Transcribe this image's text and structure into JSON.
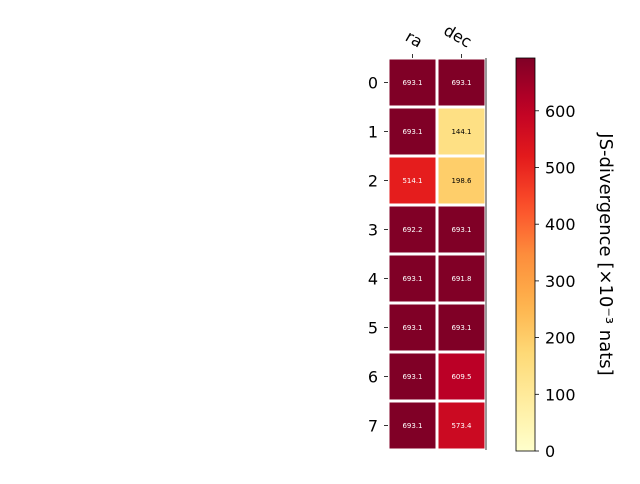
{
  "chart_data": {
    "type": "heatmap",
    "columns": [
      "ra",
      "dec"
    ],
    "rows": [
      "0",
      "1",
      "2",
      "3",
      "4",
      "5",
      "6",
      "7"
    ],
    "values": [
      [
        693.1,
        693.1
      ],
      [
        693.1,
        144.1
      ],
      [
        514.1,
        198.6
      ],
      [
        692.2,
        693.1
      ],
      [
        693.1,
        691.8
      ],
      [
        693.1,
        693.1
      ],
      [
        693.1,
        609.5
      ],
      [
        693.1,
        573.4
      ]
    ],
    "cell_labels": [
      [
        "693.1",
        "693.1"
      ],
      [
        "693.1",
        "144.1"
      ],
      [
        "514.1",
        "198.6"
      ],
      [
        "692.2",
        "693.1"
      ],
      [
        "693.1",
        "691.8"
      ],
      [
        "693.1",
        "693.1"
      ],
      [
        "693.1",
        "609.5"
      ],
      [
        "693.1",
        "573.4"
      ]
    ],
    "colormap": "YlOrRd",
    "vmin": 0,
    "vmax": 693.1,
    "colorbar": {
      "label": "JS-divergence [×10⁻³ nats]",
      "ticks": [
        0,
        100,
        200,
        300,
        400,
        500,
        600
      ],
      "tick_labels": [
        "0",
        "100",
        "200",
        "300",
        "400",
        "500",
        "600"
      ]
    },
    "column_axis_position": "top",
    "grid": false
  }
}
